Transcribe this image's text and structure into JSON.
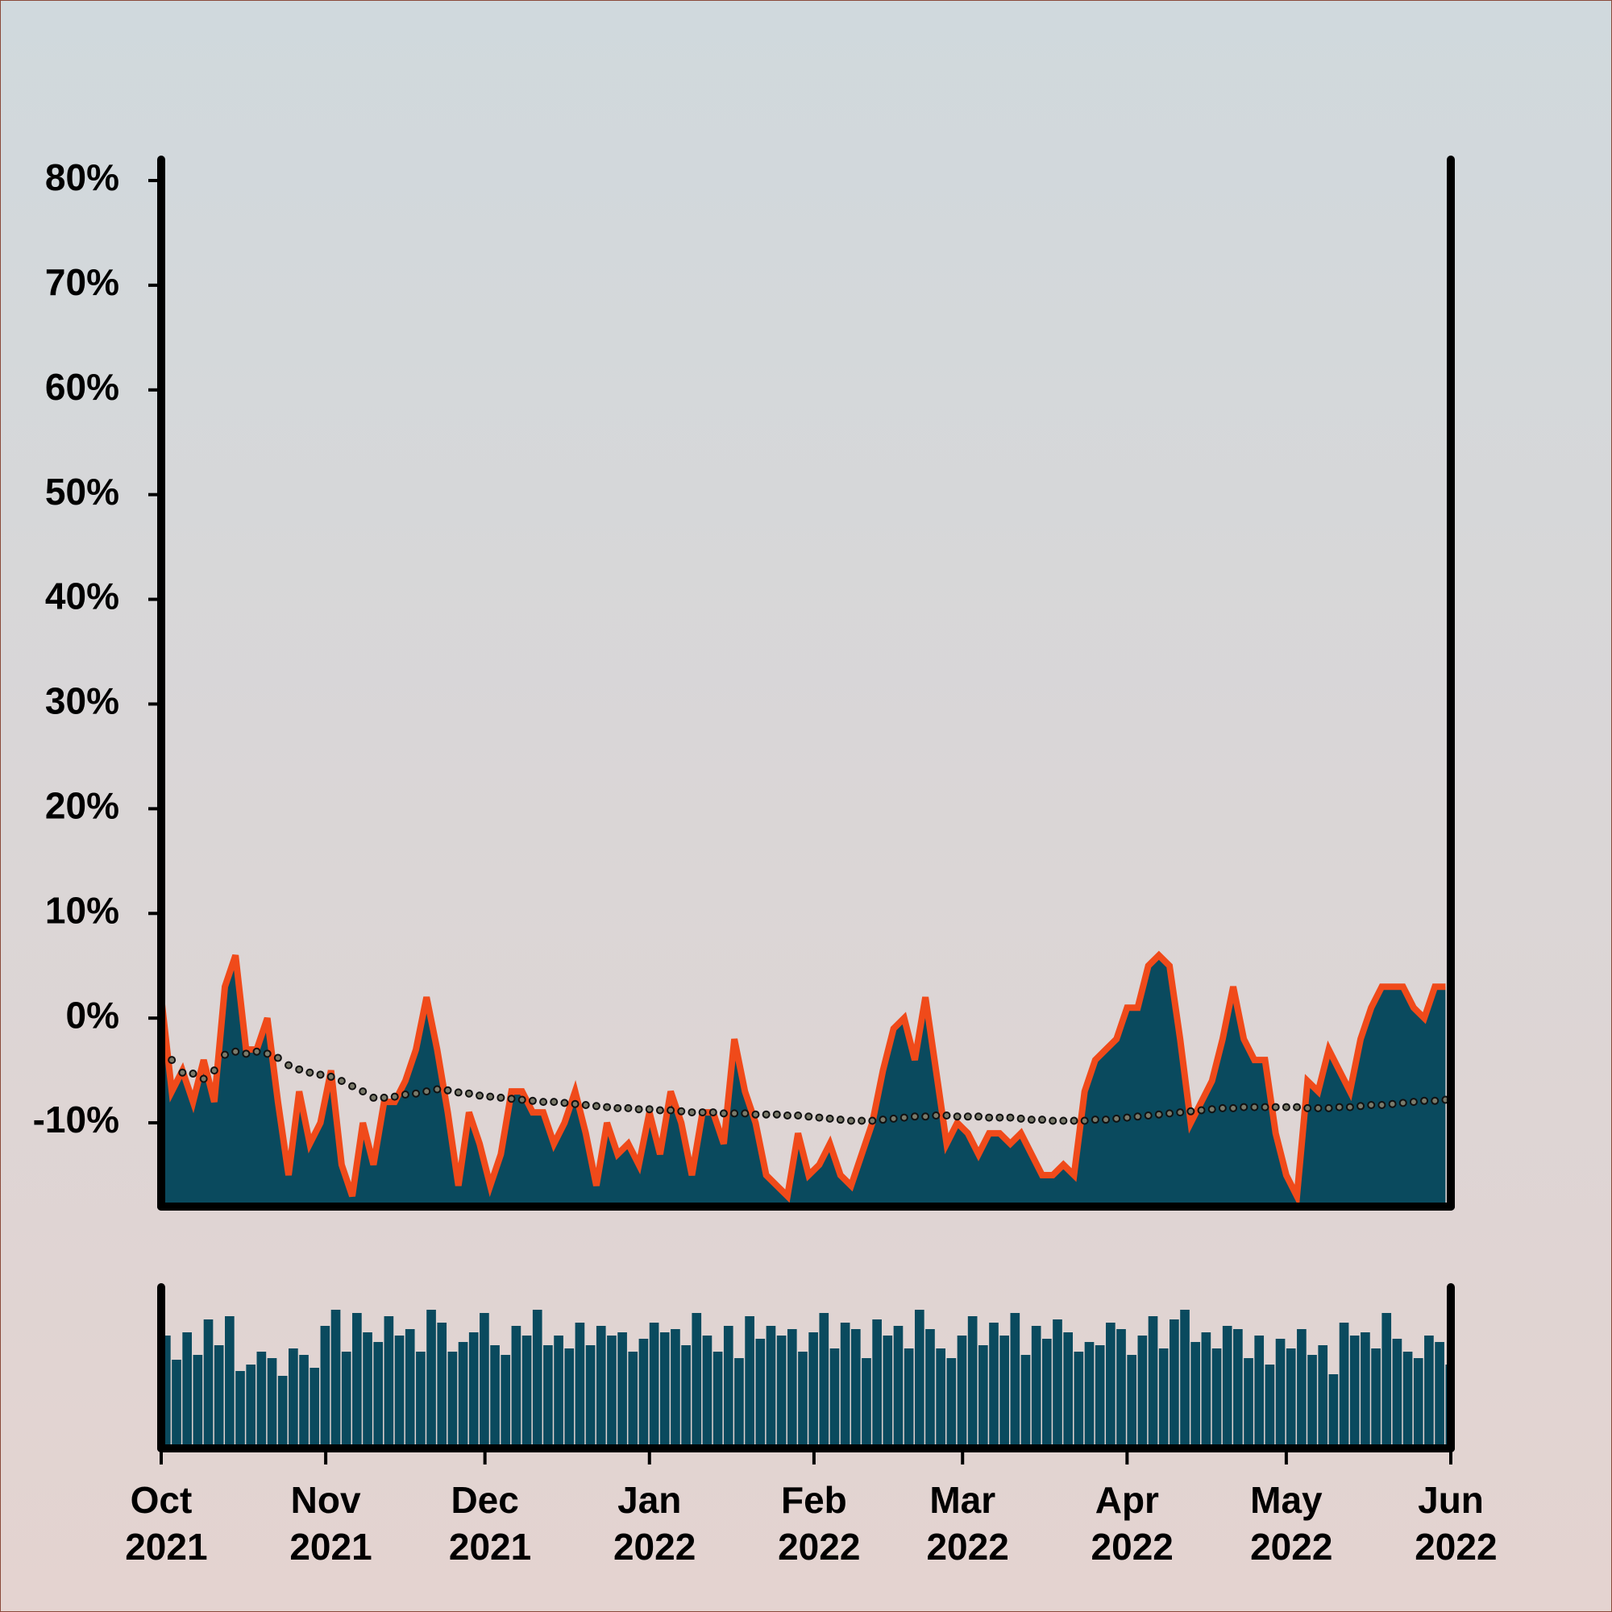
{
  "chart_data": [
    {
      "type": "area",
      "x": [
        0,
        2,
        4,
        6,
        8,
        10,
        12,
        14,
        16,
        18,
        20,
        22,
        24,
        26,
        28,
        30,
        32,
        34,
        36,
        38,
        40,
        42,
        44,
        46,
        48,
        50,
        52,
        54,
        56,
        58,
        60,
        62,
        64,
        66,
        68,
        70,
        72,
        74,
        76,
        78,
        80,
        82,
        84,
        86,
        88,
        90,
        92,
        94,
        96,
        98,
        100,
        102,
        104,
        106,
        108,
        110,
        112,
        114,
        116,
        118,
        120,
        122,
        124,
        126,
        128,
        130,
        132,
        134,
        136,
        138,
        140,
        142,
        144,
        146,
        148,
        150,
        152,
        154,
        156,
        158,
        160,
        162,
        164,
        166,
        168,
        170,
        172,
        174,
        176,
        178,
        180,
        182,
        184,
        186,
        188,
        190,
        192,
        194,
        196,
        198,
        200,
        202,
        204,
        206,
        208,
        210,
        212,
        214,
        216,
        218,
        220,
        222,
        224,
        226,
        228,
        230,
        232,
        234,
        236,
        238,
        240,
        242
      ],
      "xlim": [
        0,
        243
      ],
      "ylim": [
        -18,
        82
      ],
      "yticks": [
        {
          "value": -10,
          "label": "-10%"
        },
        {
          "value": 0,
          "label": "0%"
        },
        {
          "value": 10,
          "label": "10%"
        },
        {
          "value": 20,
          "label": "20%"
        },
        {
          "value": 30,
          "label": "30%"
        },
        {
          "value": 40,
          "label": "40%"
        },
        {
          "value": 50,
          "label": "50%"
        },
        {
          "value": 60,
          "label": "60%"
        },
        {
          "value": 70,
          "label": "70%"
        },
        {
          "value": 80,
          "label": "80%"
        }
      ],
      "series": [
        {
          "color": "#f04a1a",
          "fill": "#0a4a5e",
          "marker": "area",
          "values": [
            2,
            -7,
            -5,
            -8,
            -4,
            -8,
            3,
            6,
            -3,
            -3,
            0,
            -8,
            -15,
            -7,
            -12,
            -10,
            -5,
            -14,
            -17,
            -10,
            -14,
            -8,
            -8,
            -6,
            -3,
            2,
            -3,
            -9,
            -16,
            -9,
            -12,
            -16,
            -13,
            -7,
            -7,
            -9,
            -9,
            -12,
            -10,
            -7,
            -11,
            -16,
            -10,
            -13,
            -12,
            -14,
            -9,
            -13,
            -7,
            -10,
            -15,
            -9,
            -9,
            -12,
            -2,
            -7,
            -10,
            -15,
            -16,
            -17,
            -11,
            -15,
            -14,
            -12,
            -15,
            -16,
            -13,
            -10,
            -5,
            -1,
            0,
            -4,
            2,
            -5,
            -12,
            -10,
            -11,
            -13,
            -11,
            -11,
            -12,
            -11,
            -13,
            -15,
            -15,
            -14,
            -15,
            -7,
            -4,
            -3,
            -2,
            1,
            1,
            5,
            6,
            5,
            -2,
            -10,
            -8,
            -6,
            -2,
            3,
            -2,
            -4,
            -4,
            -11,
            -15,
            -17,
            -6,
            -7,
            -3,
            -5,
            -7,
            -2,
            1,
            3,
            3,
            3,
            1,
            0,
            3,
            3
          ]
        },
        {
          "color": "#7a7a6a",
          "marker": "dots",
          "values": [
            -3.5,
            -4,
            -5.2,
            -5.3,
            -5.8,
            -5,
            -3.5,
            -3.2,
            -3.4,
            -3.2,
            -3.4,
            -3.8,
            -4.5,
            -4.9,
            -5.2,
            -5.4,
            -5.6,
            -6,
            -6.5,
            -7,
            -7.6,
            -7.6,
            -7.5,
            -7.3,
            -7.2,
            -7,
            -6.8,
            -6.9,
            -7.1,
            -7.2,
            -7.4,
            -7.5,
            -7.6,
            -7.7,
            -7.8,
            -7.9,
            -8,
            -8,
            -8.1,
            -8.2,
            -8.3,
            -8.4,
            -8.5,
            -8.6,
            -8.6,
            -8.7,
            -8.7,
            -8.8,
            -8.8,
            -8.9,
            -9,
            -9,
            -9,
            -9.1,
            -9.1,
            -9.1,
            -9.2,
            -9.2,
            -9.2,
            -9.3,
            -9.3,
            -9.4,
            -9.5,
            -9.6,
            -9.7,
            -9.8,
            -9.8,
            -9.8,
            -9.7,
            -9.6,
            -9.5,
            -9.4,
            -9.4,
            -9.3,
            -9.3,
            -9.4,
            -9.4,
            -9.4,
            -9.5,
            -9.5,
            -9.5,
            -9.6,
            -9.7,
            -9.7,
            -9.8,
            -9.8,
            -9.8,
            -9.8,
            -9.7,
            -9.7,
            -9.6,
            -9.5,
            -9.4,
            -9.3,
            -9.2,
            -9.1,
            -9,
            -8.9,
            -8.8,
            -8.7,
            -8.6,
            -8.6,
            -8.5,
            -8.5,
            -8.5,
            -8.5,
            -8.5,
            -8.5,
            -8.6,
            -8.6,
            -8.6,
            -8.5,
            -8.5,
            -8.4,
            -8.3,
            -8.3,
            -8.2,
            -8.1,
            -8,
            -7.9,
            -7.9,
            -7.8
          ]
        }
      ]
    },
    {
      "type": "bar",
      "x": [
        0,
        2,
        4,
        6,
        8,
        10,
        12,
        14,
        16,
        18,
        20,
        22,
        24,
        26,
        28,
        30,
        32,
        34,
        36,
        38,
        40,
        42,
        44,
        46,
        48,
        50,
        52,
        54,
        56,
        58,
        60,
        62,
        64,
        66,
        68,
        70,
        72,
        74,
        76,
        78,
        80,
        82,
        84,
        86,
        88,
        90,
        92,
        94,
        96,
        98,
        100,
        102,
        104,
        106,
        108,
        110,
        112,
        114,
        116,
        118,
        120,
        122,
        124,
        126,
        128,
        130,
        132,
        134,
        136,
        138,
        140,
        142,
        144,
        146,
        148,
        150,
        152,
        154,
        156,
        158,
        160,
        162,
        164,
        166,
        168,
        170,
        172,
        174,
        176,
        178,
        180,
        182,
        184,
        186,
        188,
        190,
        192,
        194,
        196,
        198,
        200,
        202,
        204,
        206,
        208,
        210,
        212,
        214,
        216,
        218,
        220,
        222,
        224,
        226,
        228,
        230,
        232,
        234,
        236,
        238,
        240,
        242
      ],
      "xlim": [
        0,
        243
      ],
      "ylim": [
        0,
        100
      ],
      "color": "#0a4a5e",
      "xticks": [
        {
          "value": 0,
          "label": "Oct 2021"
        },
        {
          "value": 31,
          "label": "Nov 2021"
        },
        {
          "value": 61,
          "label": "Dec 2021"
        },
        {
          "value": 92,
          "label": "Jan 2022"
        },
        {
          "value": 123,
          "label": "Feb 2022"
        },
        {
          "value": 151,
          "label": "Mar 2022"
        },
        {
          "value": 182,
          "label": "Apr 2022"
        },
        {
          "value": 212,
          "label": "May 2022"
        },
        {
          "value": 243,
          "label": "Jun 2022"
        }
      ],
      "values": [
        70,
        55,
        72,
        58,
        80,
        64,
        82,
        48,
        52,
        60,
        56,
        45,
        62,
        58,
        50,
        76,
        86,
        60,
        84,
        72,
        66,
        82,
        70,
        74,
        60,
        86,
        78,
        60,
        66,
        72,
        84,
        64,
        58,
        76,
        70,
        86,
        64,
        70,
        62,
        78,
        64,
        76,
        70,
        72,
        60,
        68,
        78,
        72,
        74,
        64,
        84,
        70,
        60,
        76,
        56,
        82,
        68,
        76,
        70,
        74,
        60,
        72,
        84,
        62,
        78,
        74,
        56,
        80,
        70,
        76,
        62,
        86,
        74,
        62,
        56,
        70,
        82,
        64,
        78,
        70,
        84,
        58,
        76,
        68,
        80,
        72,
        60,
        66,
        64,
        78,
        74,
        58,
        70,
        82,
        62,
        80,
        86,
        66,
        72,
        62,
        76,
        74,
        56,
        70,
        52,
        68,
        62,
        74,
        58,
        64,
        46,
        78,
        70,
        72,
        62,
        84,
        68,
        60,
        56,
        70,
        66,
        52
      ]
    }
  ]
}
